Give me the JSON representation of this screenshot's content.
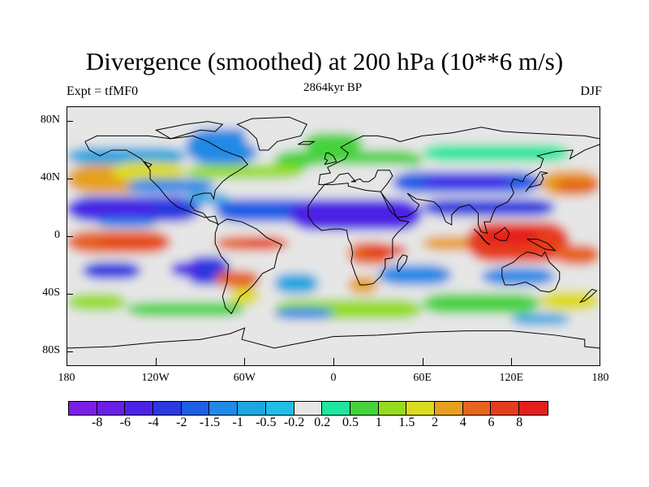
{
  "header": {
    "title": "Divergence (smoothed) at 200 hPa (10**6 m/s)",
    "left_subtitle": "Expt = tfMF0",
    "center_subtitle": "2864kyr BP",
    "right_subtitle": "DJF"
  },
  "chart_data": {
    "type": "heatmap",
    "variable": "Divergence (smoothed) at 200 hPa",
    "units": "10**6 m/s",
    "experiment": "tfMF0",
    "time": "2864kyr BP",
    "season": "DJF",
    "projection": "cylindrical equidistant",
    "xlim": [
      -180,
      180
    ],
    "ylim": [
      -90,
      90
    ],
    "x_ticks": [
      {
        "value": -180,
        "label": "180"
      },
      {
        "value": -120,
        "label": "120W"
      },
      {
        "value": -60,
        "label": "60W"
      },
      {
        "value": 0,
        "label": "0"
      },
      {
        "value": 60,
        "label": "60E"
      },
      {
        "value": 120,
        "label": "120E"
      },
      {
        "value": 180,
        "label": "180"
      }
    ],
    "y_ticks": [
      {
        "value": 80,
        "label": "80N"
      },
      {
        "value": 40,
        "label": "40N"
      },
      {
        "value": 0,
        "label": "0"
      },
      {
        "value": -40,
        "label": "40S"
      },
      {
        "value": -80,
        "label": "80S"
      }
    ],
    "colorbar": {
      "levels": [
        "-8",
        "-6",
        "-4",
        "-2",
        "-1.5",
        "-1",
        "-0.5",
        "-0.2",
        "0.2",
        "0.5",
        "1",
        "1.5",
        "2",
        "4",
        "6",
        "8"
      ],
      "colors": [
        "#7c1ee6",
        "#6a1ee6",
        "#4b23e6",
        "#2b38e0",
        "#1e5ee6",
        "#2189e6",
        "#1ea6e1",
        "#21bde6",
        "#e6e6e6",
        "#1ee69e",
        "#46d23c",
        "#96dc1e",
        "#dcdc1e",
        "#e6a01e",
        "#e6641e",
        "#e63c1e",
        "#e61e1e"
      ]
    }
  }
}
